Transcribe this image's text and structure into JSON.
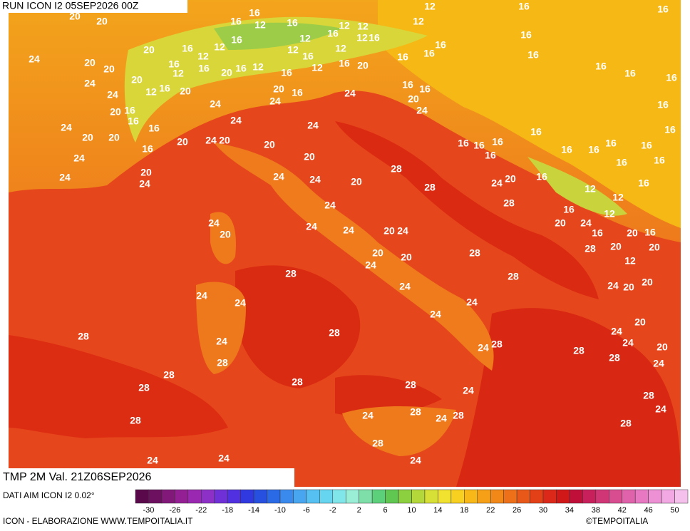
{
  "header": {
    "run": "RUN ICON I2 05SEP2026 00Z"
  },
  "title": "TMP 2M Val. 21Z06SEP2026",
  "source": "DATI AIM ICON I2 0.02°",
  "footer": {
    "left": "ICON - ELABORAZIONE WWW.TEMPOITALIA.IT",
    "right": "©TEMPOITALIA"
  },
  "colorbar": {
    "ticks": [
      -30,
      -26,
      -22,
      -18,
      -14,
      -10,
      -6,
      -2,
      2,
      6,
      10,
      14,
      18,
      22,
      26,
      30,
      34,
      38,
      42,
      46,
      50
    ]
  },
  "map": {
    "labels": [
      12,
      16,
      16,
      16,
      16,
      12,
      16,
      12,
      12,
      12,
      12,
      16,
      12,
      16,
      16,
      20,
      16,
      12,
      16,
      12,
      12,
      16,
      12,
      16,
      16,
      16,
      16,
      24,
      20,
      20,
      16,
      12,
      16,
      20,
      16,
      12,
      16,
      12,
      16,
      20,
      16,
      16,
      16,
      24,
      20,
      24,
      12,
      16,
      20,
      20,
      16,
      24,
      16,
      16,
      20,
      24,
      24,
      20,
      16,
      24,
      16,
      24,
      16,
      16,
      24,
      24,
      16,
      16,
      20,
      20,
      24,
      20,
      20,
      20,
      16,
      16,
      16,
      16,
      16,
      16,
      16,
      24,
      16,
      20,
      16,
      16,
      16,
      24,
      20,
      24,
      24,
      28,
      20,
      20,
      16,
      16,
      24,
      28,
      24,
      12,
      12,
      24,
      28,
      16,
      12,
      24,
      20,
      24,
      24,
      20,
      24,
      20,
      24,
      16,
      20,
      16,
      20,
      20,
      24,
      28,
      28,
      20,
      20,
      12,
      28,
      28,
      24,
      20,
      20,
      24,
      24,
      24,
      24,
      24,
      28,
      28,
      20,
      24,
      24,
      24,
      28,
      28,
      24,
      20,
      28,
      28,
      24,
      28,
      28,
      28,
      24,
      28,
      28,
      24,
      28,
      24,
      28,
      24,
      28,
      28,
      28,
      24,
      24,
      24,
      20,
      20
    ]
  }
}
